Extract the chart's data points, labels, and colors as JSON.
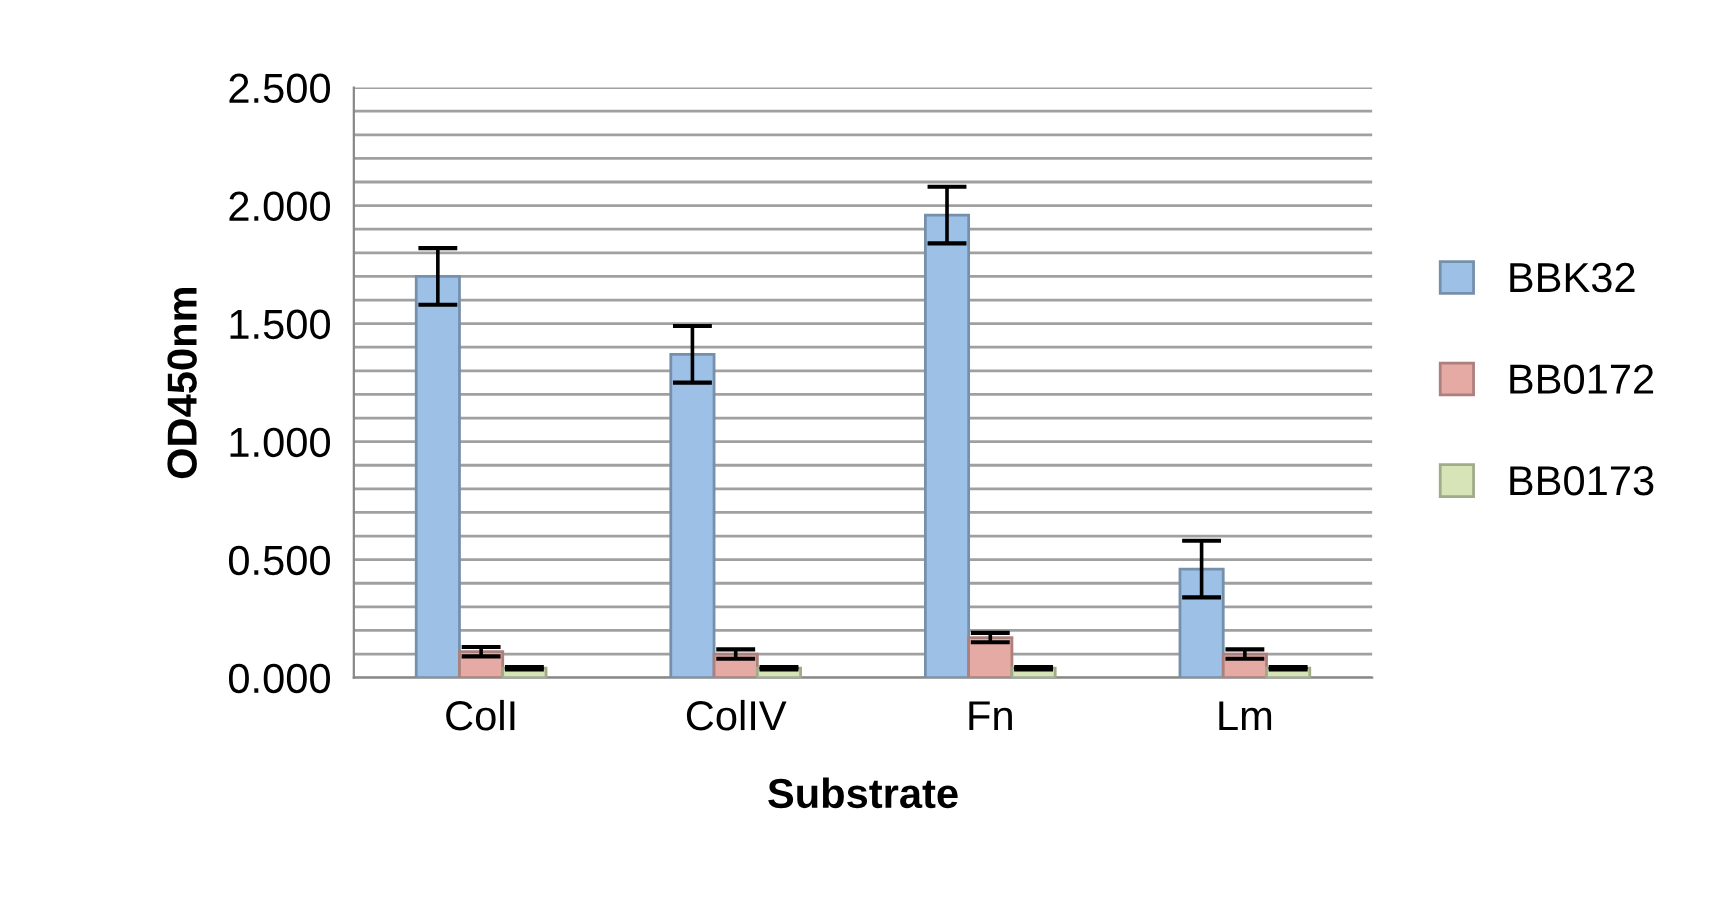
{
  "chart_data": {
    "type": "bar",
    "xlabel": "Substrate",
    "ylabel": "OD450nm",
    "categories": [
      "ColI",
      "ColIV",
      "Fn",
      "Lm"
    ],
    "series": [
      {
        "name": "BBK32",
        "color": "#9dc0e6",
        "values": [
          1.7,
          1.37,
          1.96,
          0.46
        ],
        "errors": [
          0.12,
          0.12,
          0.12,
          0.12
        ]
      },
      {
        "name": "BB0172",
        "color": "#e6aaa5",
        "values": [
          0.11,
          0.1,
          0.17,
          0.1
        ],
        "errors": [
          0.02,
          0.02,
          0.02,
          0.02
        ]
      },
      {
        "name": "BB0173",
        "color": "#d6e4b8",
        "values": [
          0.04,
          0.04,
          0.04,
          0.04
        ],
        "errors": [
          0.005,
          0.005,
          0.005,
          0.005
        ]
      }
    ],
    "ylim": [
      0,
      2.5
    ],
    "yticks": [
      {
        "value": 0,
        "label": "0.000"
      },
      {
        "value": 0.1,
        "label": null
      },
      {
        "value": 0.2,
        "label": null
      },
      {
        "value": 0.3,
        "label": null
      },
      {
        "value": 0.4,
        "label": null
      },
      {
        "value": 0.5,
        "label": "0.500"
      },
      {
        "value": 0.6,
        "label": null
      },
      {
        "value": 0.7,
        "label": null
      },
      {
        "value": 0.8,
        "label": null
      },
      {
        "value": 0.9,
        "label": null
      },
      {
        "value": 1.0,
        "label": "1.000"
      },
      {
        "value": 1.1,
        "label": null
      },
      {
        "value": 1.2,
        "label": null
      },
      {
        "value": 1.3,
        "label": null
      },
      {
        "value": 1.4,
        "label": null
      },
      {
        "value": 1.5,
        "label": "1.500"
      },
      {
        "value": 1.6,
        "label": null
      },
      {
        "value": 1.7,
        "label": null
      },
      {
        "value": 1.8,
        "label": null
      },
      {
        "value": 1.9,
        "label": null
      },
      {
        "value": 2.0,
        "label": "2.000"
      },
      {
        "value": 2.1,
        "label": null
      },
      {
        "value": 2.2,
        "label": null
      },
      {
        "value": 2.3,
        "label": null
      },
      {
        "value": 2.4,
        "label": null
      },
      {
        "value": 2.5,
        "label": "2.500"
      }
    ],
    "grid": "y",
    "legend": "right"
  }
}
